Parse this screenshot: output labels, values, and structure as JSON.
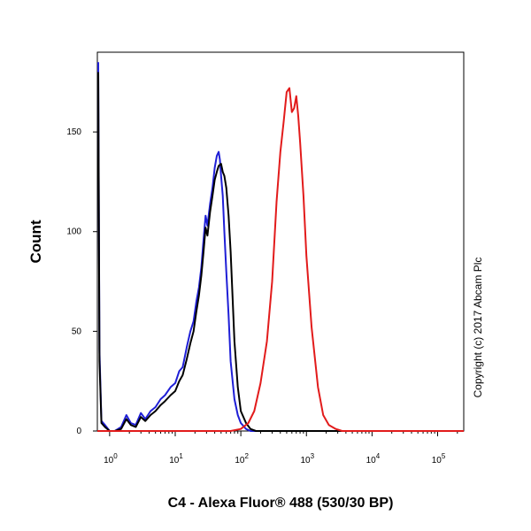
{
  "chart_data": {
    "type": "line",
    "title": "",
    "xlabel": "C4 - Alexa Fluor® 488 (530/30 BP)",
    "ylabel": "Count",
    "x_scale": "log",
    "xlim": [
      0.65,
      250000
    ],
    "ylim": [
      0,
      190
    ],
    "x_tick_labels": [
      {
        "value": 1,
        "base": "10",
        "exp": "0"
      },
      {
        "value": 10,
        "base": "10",
        "exp": "1"
      },
      {
        "value": 100,
        "base": "10",
        "exp": "2"
      },
      {
        "value": 1000,
        "base": "10",
        "exp": "3"
      },
      {
        "value": 10000,
        "base": "10",
        "exp": "4"
      },
      {
        "value": 100000,
        "base": "10",
        "exp": "5"
      }
    ],
    "y_ticks": [
      0,
      50,
      100,
      150
    ],
    "grid": false,
    "legend": "none",
    "annotation": "Copyright (c) 2017 Abcam Plc",
    "series": [
      {
        "color": "#1f1fd6",
        "x": [
          0.67,
          0.7,
          0.75,
          0.85,
          1.0,
          1.2,
          1.5,
          1.8,
          2.1,
          2.5,
          3.0,
          3.5,
          4.2,
          5.0,
          6.0,
          7.0,
          8.5,
          10,
          11.5,
          13,
          15,
          17,
          19,
          21,
          23,
          25,
          27,
          29,
          31,
          34,
          37,
          40,
          43,
          46,
          48,
          50,
          53,
          56,
          60,
          65,
          70,
          80,
          90,
          100,
          120,
          140,
          170,
          250000
        ],
        "y": [
          185,
          40,
          5,
          3,
          0,
          0,
          2,
          8,
          4,
          3,
          9,
          6,
          10,
          12,
          16,
          18,
          22,
          24,
          30,
          32,
          42,
          50,
          55,
          65,
          72,
          82,
          96,
          108,
          103,
          114,
          122,
          132,
          138,
          140,
          136,
          128,
          118,
          100,
          80,
          58,
          35,
          16,
          8,
          4,
          1,
          0,
          0,
          0
        ]
      },
      {
        "color": "#000000",
        "x": [
          0.67,
          0.7,
          0.75,
          0.85,
          1.0,
          1.2,
          1.5,
          1.8,
          2.1,
          2.5,
          3.0,
          3.5,
          4.2,
          5.0,
          6.0,
          7.0,
          8.5,
          10,
          11.5,
          13,
          15,
          17,
          19,
          21,
          23,
          25,
          27,
          29,
          31,
          34,
          37,
          40,
          43,
          46,
          50,
          53,
          56,
          60,
          65,
          70,
          75,
          80,
          90,
          100,
          120,
          140,
          170,
          250000
        ],
        "y": [
          180,
          35,
          4,
          2,
          0,
          0,
          1,
          6,
          3,
          2,
          7,
          5,
          8,
          10,
          13,
          15,
          18,
          20,
          25,
          28,
          36,
          44,
          50,
          60,
          68,
          78,
          90,
          102,
          98,
          110,
          118,
          126,
          130,
          133,
          134,
          130,
          128,
          122,
          108,
          90,
          66,
          45,
          22,
          10,
          4,
          1,
          0,
          0
        ]
      },
      {
        "color": "#e21b1b",
        "x": [
          0.65,
          20,
          70,
          100,
          130,
          160,
          200,
          250,
          300,
          350,
          400,
          450,
          500,
          550,
          600,
          650,
          700,
          750,
          800,
          900,
          1000,
          1200,
          1500,
          1800,
          2200,
          2800,
          3500,
          4500,
          250000
        ],
        "y": [
          0,
          0,
          0,
          1,
          4,
          10,
          24,
          45,
          75,
          115,
          140,
          155,
          170,
          172,
          160,
          162,
          168,
          158,
          145,
          118,
          88,
          52,
          22,
          8,
          3,
          1,
          0,
          0,
          0
        ]
      }
    ]
  }
}
